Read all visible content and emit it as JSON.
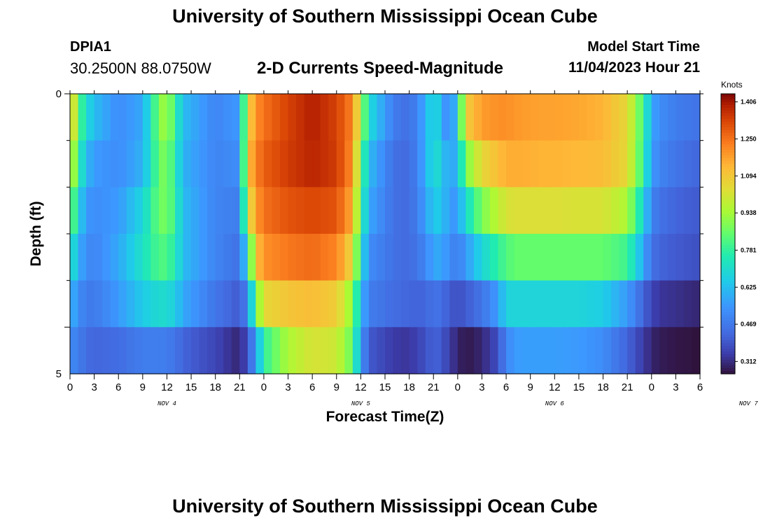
{
  "header": {
    "title": "University of Southern Mississippi Ocean Cube",
    "station_id": "DPIA1",
    "coordinates": "30.2500N  88.0750W",
    "subtitle": "2-D Currents Speed-Magnitude",
    "model_start_label": "Model Start Time",
    "model_start_value": "11/04/2023 Hour 21"
  },
  "footer": {
    "title": "University of Southern Mississippi Ocean Cube"
  },
  "chart_data": {
    "type": "heatmap",
    "title": "2-D Currents Speed-Magnitude",
    "xlabel": "Forecast Time(Z)",
    "ylabel": "Depth (ft)",
    "x_tick_labels": [
      "0",
      "3",
      "6",
      "9",
      "12",
      "15",
      "18",
      "21",
      "0",
      "3",
      "6",
      "9",
      "12",
      "15",
      "18",
      "21",
      "0",
      "3",
      "6",
      "9",
      "12",
      "15",
      "18",
      "21",
      "0",
      "3",
      "6"
    ],
    "x_day_labels": [
      "NOV 4",
      "NOV 5",
      "NOV 6",
      "NOV 7"
    ],
    "y_tick_labels": [
      "0",
      "5"
    ],
    "ylim": [
      0,
      5
    ],
    "x_range_hours": [
      0,
      78
    ],
    "depth_levels_ft": [
      0,
      1,
      2,
      3,
      4,
      5
    ],
    "colorbar": {
      "unit": "Knots",
      "tick_labels": [
        "1.406",
        "1.250",
        "1.094",
        "0.938",
        "0.781",
        "0.625",
        "0.469",
        "0.312"
      ],
      "min": 0.26,
      "max": 1.44
    },
    "profile_hours": [
      0,
      1,
      2,
      3,
      6,
      9,
      11,
      12,
      13,
      14,
      18,
      21,
      22,
      23,
      24,
      27,
      30,
      33,
      35,
      36,
      37,
      40,
      42,
      44,
      45,
      46,
      47,
      48,
      49,
      51,
      53,
      54,
      55,
      56,
      58,
      60,
      63,
      66,
      69,
      71,
      72,
      73,
      75,
      78
    ],
    "values": [
      [
        1.15,
        0.85,
        0.7,
        0.62,
        0.52,
        0.58,
        0.88,
        0.95,
        0.78,
        0.62,
        0.5,
        0.55,
        1.05,
        1.2,
        1.25,
        1.33,
        1.39,
        1.33,
        1.22,
        0.95,
        0.7,
        0.48,
        0.44,
        0.58,
        0.72,
        0.6,
        0.48,
        0.68,
        1.08,
        1.18,
        1.2,
        1.2,
        1.19,
        1.18,
        1.17,
        1.17,
        1.16,
        1.14,
        1.05,
        0.8,
        0.58,
        0.52,
        0.48,
        0.45
      ],
      [
        1.05,
        0.78,
        0.62,
        0.55,
        0.52,
        0.6,
        0.85,
        0.9,
        0.75,
        0.6,
        0.5,
        0.52,
        1.1,
        1.22,
        1.28,
        1.34,
        1.38,
        1.34,
        1.2,
        0.85,
        0.62,
        0.45,
        0.43,
        0.58,
        0.72,
        0.66,
        0.55,
        0.62,
        0.88,
        1.05,
        1.12,
        1.15,
        1.15,
        1.15,
        1.14,
        1.14,
        1.13,
        1.12,
        1.05,
        0.78,
        0.55,
        0.5,
        0.46,
        0.42
      ],
      [
        0.92,
        0.68,
        0.55,
        0.52,
        0.55,
        0.68,
        0.86,
        0.88,
        0.78,
        0.62,
        0.5,
        0.48,
        1.0,
        1.18,
        1.25,
        1.3,
        1.32,
        1.3,
        1.15,
        0.8,
        0.58,
        0.45,
        0.43,
        0.55,
        0.66,
        0.64,
        0.55,
        0.55,
        0.7,
        0.88,
        0.98,
        1.02,
        1.03,
        1.03,
        1.03,
        1.03,
        1.02,
        1.02,
        0.95,
        0.68,
        0.5,
        0.45,
        0.42,
        0.4
      ],
      [
        0.75,
        0.6,
        0.52,
        0.5,
        0.58,
        0.72,
        0.82,
        0.82,
        0.75,
        0.62,
        0.5,
        0.45,
        0.72,
        1.1,
        1.2,
        1.24,
        1.26,
        1.22,
        1.05,
        0.72,
        0.52,
        0.45,
        0.43,
        0.5,
        0.58,
        0.58,
        0.52,
        0.48,
        0.55,
        0.68,
        0.78,
        0.82,
        0.85,
        0.85,
        0.85,
        0.85,
        0.85,
        0.85,
        0.8,
        0.58,
        0.45,
        0.42,
        0.4,
        0.38
      ],
      [
        0.62,
        0.52,
        0.48,
        0.47,
        0.55,
        0.65,
        0.7,
        0.7,
        0.66,
        0.58,
        0.46,
        0.4,
        0.5,
        0.85,
        1.05,
        1.1,
        1.12,
        1.08,
        0.9,
        0.62,
        0.48,
        0.44,
        0.42,
        0.42,
        0.46,
        0.44,
        0.4,
        0.38,
        0.4,
        0.46,
        0.55,
        0.68,
        0.68,
        0.68,
        0.68,
        0.68,
        0.68,
        0.66,
        0.55,
        0.42,
        0.36,
        0.33,
        0.32,
        0.3
      ],
      [
        0.52,
        0.48,
        0.44,
        0.42,
        0.44,
        0.48,
        0.48,
        0.48,
        0.46,
        0.42,
        0.36,
        0.3,
        0.38,
        0.55,
        0.78,
        0.95,
        1.02,
        1.0,
        0.85,
        0.55,
        0.4,
        0.34,
        0.33,
        0.38,
        0.42,
        0.4,
        0.34,
        0.3,
        0.27,
        0.3,
        0.38,
        0.5,
        0.55,
        0.56,
        0.56,
        0.56,
        0.55,
        0.52,
        0.42,
        0.34,
        0.3,
        0.28,
        0.27,
        0.26
      ]
    ]
  }
}
